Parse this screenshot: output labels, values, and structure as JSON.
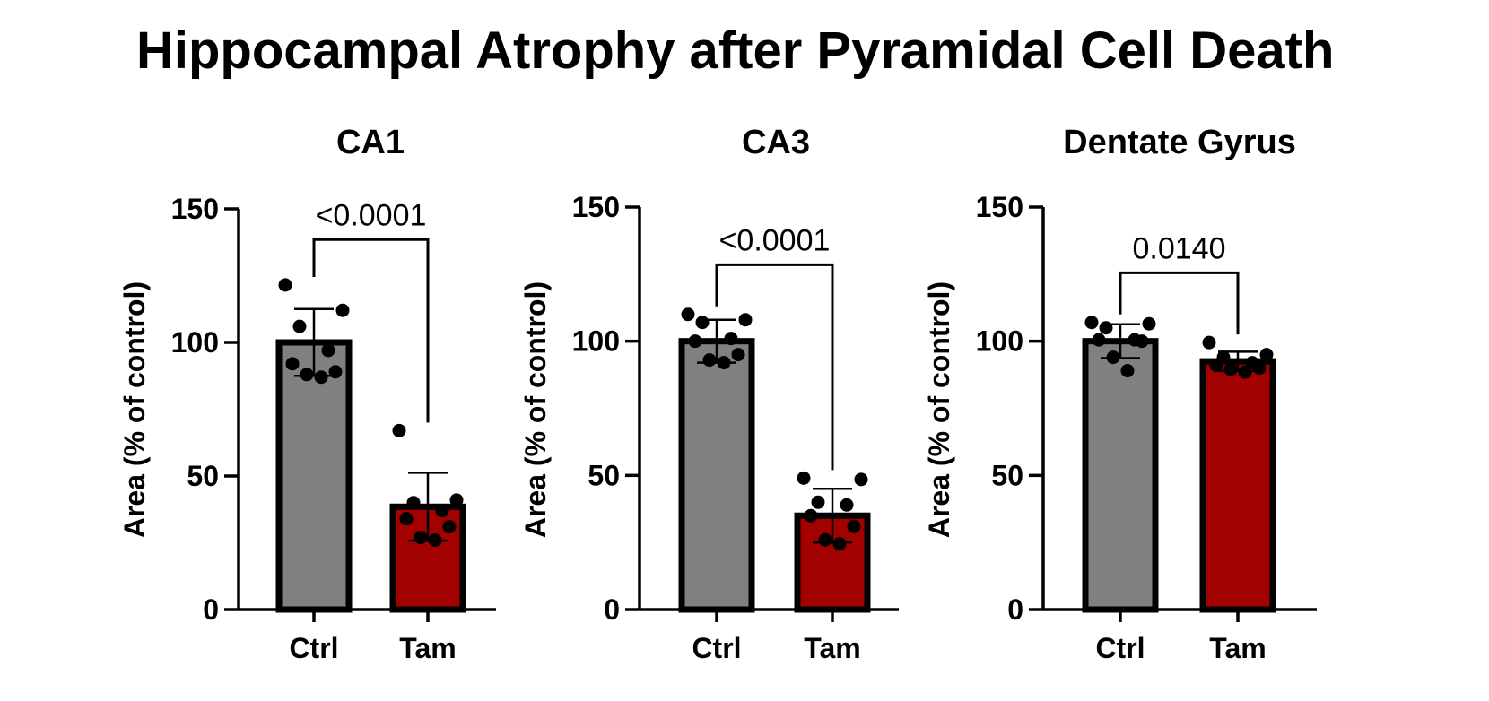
{
  "figure": {
    "title": "Hippocampal Atrophy after Pyramidal Cell Death"
  },
  "colors": {
    "ctrl_fill": "#808080",
    "tam_fill": "#a30000",
    "axis": "#000000",
    "point": "#000000"
  },
  "chart_data": [
    {
      "type": "bar",
      "title": "CA1",
      "ylabel": "Area (% of control)",
      "xlabel": "",
      "ylim": [
        0,
        150
      ],
      "yticks": [
        0,
        50,
        100,
        150
      ],
      "categories": [
        "Ctrl",
        "Tam"
      ],
      "values": [
        100,
        38.5
      ],
      "error_sd": [
        12.5,
        12.7
      ],
      "points": [
        [
          121.5,
          112,
          106,
          97,
          92,
          89,
          88,
          87
        ],
        [
          67,
          41,
          40,
          37,
          34,
          31,
          27,
          26
        ]
      ],
      "comparison": {
        "label": "<0.0001",
        "y": 138.5
      },
      "grid": false,
      "legend": "none"
    },
    {
      "type": "bar",
      "title": "CA3",
      "ylabel": "Area (% of control)",
      "xlabel": "",
      "ylim": [
        0,
        150
      ],
      "yticks": [
        0,
        50,
        100,
        150
      ],
      "categories": [
        "Ctrl",
        "Tam"
      ],
      "values": [
        100,
        35
      ],
      "error_sd": [
        8,
        10
      ],
      "points": [
        [
          110,
          108,
          107,
          101,
          100,
          95,
          93,
          92
        ],
        [
          49,
          48.5,
          40,
          39,
          35,
          31,
          26,
          24.5
        ]
      ],
      "comparison": {
        "label": "<0.0001",
        "y": 128.5
      },
      "grid": false,
      "legend": "none"
    },
    {
      "type": "bar",
      "title": "Dentate Gyrus",
      "ylabel": "Area (% of control)",
      "xlabel": "",
      "ylim": [
        0,
        150
      ],
      "yticks": [
        0,
        50,
        100,
        150
      ],
      "categories": [
        "Ctrl",
        "Tam"
      ],
      "values": [
        100,
        92.5
      ],
      "error_sd": [
        6.3,
        3.6
      ],
      "points": [
        [
          107,
          106.5,
          105,
          100.5,
          100.5,
          100,
          94,
          89
        ],
        [
          99.5,
          95,
          94,
          92,
          91,
          90,
          89.5,
          88.5
        ]
      ],
      "comparison": {
        "label": "0.0140",
        "y": 125.5
      },
      "grid": false,
      "legend": "none"
    }
  ]
}
